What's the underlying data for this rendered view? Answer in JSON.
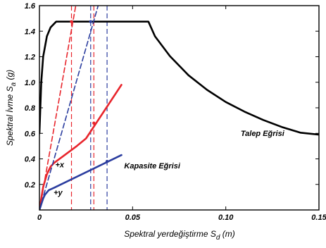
{
  "chart_data": {
    "type": "line",
    "xlabel_main": "Spektral yerdeğiştirme S",
    "xlabel_sub": "d",
    "xlabel_unit": " (m)",
    "ylabel_main": "Spektral İvme S",
    "ylabel_sub": "a",
    "ylabel_unit": " (g)",
    "xlim": [
      0,
      0.15
    ],
    "ylim": [
      0,
      1.6
    ],
    "x_ticks": [
      {
        "v": 0,
        "label": "0"
      },
      {
        "v": 0.05,
        "label": "0.05"
      },
      {
        "v": 0.1,
        "label": "0.10"
      },
      {
        "v": 0.15,
        "label": "0.15"
      }
    ],
    "y_ticks": [
      {
        "v": 0.2,
        "label": "0.2"
      },
      {
        "v": 0.4,
        "label": "0.4"
      },
      {
        "v": 0.6,
        "label": "0.6"
      },
      {
        "v": 0.8,
        "label": "0.8"
      },
      {
        "v": 1.0,
        "label": "1.0"
      },
      {
        "v": 1.2,
        "label": "1.2"
      },
      {
        "v": 1.4,
        "label": "1.4"
      },
      {
        "v": 1.6,
        "label": "1.6"
      }
    ],
    "grid": false,
    "series": [
      {
        "name": "Talep Eğrisi",
        "color": "#000000",
        "style": "solid",
        "points": [
          [
            0,
            0.6
          ],
          [
            0.001,
            1.0
          ],
          [
            0.002,
            1.2
          ],
          [
            0.004,
            1.36
          ],
          [
            0.006,
            1.43
          ],
          [
            0.009,
            1.475
          ],
          [
            0.0585,
            1.475
          ],
          [
            0.062,
            1.36
          ],
          [
            0.07,
            1.205
          ],
          [
            0.08,
            1.055
          ],
          [
            0.09,
            0.94
          ],
          [
            0.1,
            0.845
          ],
          [
            0.11,
            0.77
          ],
          [
            0.12,
            0.705
          ],
          [
            0.13,
            0.65
          ],
          [
            0.14,
            0.605
          ],
          [
            0.15,
            0.59
          ]
        ]
      },
      {
        "name": "Kapasite Eğrisi +x",
        "color": "#e8252c",
        "style": "solid",
        "points": [
          [
            0,
            0
          ],
          [
            0.002,
            0.18
          ],
          [
            0.004,
            0.28
          ],
          [
            0.006,
            0.34
          ],
          [
            0.008,
            0.37
          ],
          [
            0.02,
            0.5
          ],
          [
            0.025,
            0.56
          ],
          [
            0.044,
            0.98
          ]
        ]
      },
      {
        "name": "Kapasite Eğrisi +y",
        "color": "#2b3d9f",
        "style": "solid",
        "points": [
          [
            0,
            0
          ],
          [
            0.002,
            0.09
          ],
          [
            0.003,
            0.12
          ],
          [
            0.005,
            0.155
          ],
          [
            0.008,
            0.175
          ],
          [
            0.044,
            0.43
          ]
        ]
      },
      {
        "name": "",
        "color": "#e8252c",
        "style": "dashed",
        "points": [
          [
            0,
            0
          ],
          [
            0.0195,
            1.6
          ]
        ]
      },
      {
        "name": "",
        "color": "#2b3d9f",
        "style": "dashed",
        "points": [
          [
            0,
            0
          ],
          [
            0.0315,
            1.6
          ]
        ]
      }
    ],
    "vlines": [
      {
        "x": 0.0172,
        "color": "#e8252c"
      },
      {
        "x": 0.0292,
        "color": "#e8252c"
      },
      {
        "x": 0.0275,
        "color": "#2b3d9f"
      },
      {
        "x": 0.0363,
        "color": "#2b3d9f"
      }
    ],
    "performance_points": [
      {
        "x": 0.0172,
        "y": 1.475,
        "color": "#e8252c"
      },
      {
        "x": 0.0292,
        "y": 0.68,
        "color": "#e8252c"
      },
      {
        "x": 0.0275,
        "y": 1.475,
        "color": "#2b3d9f"
      },
      {
        "x": 0.0363,
        "y": 0.38,
        "color": "#2b3d9f"
      }
    ],
    "annotations": [
      {
        "text": "Talep Eğrisi",
        "x": 0.108,
        "y": 0.58
      },
      {
        "text": "Kapasite Eğrisi",
        "x": 0.0455,
        "y": 0.325
      },
      {
        "text": "+x",
        "x": 0.0085,
        "y": 0.335
      },
      {
        "text": "+y",
        "x": 0.0076,
        "y": 0.115
      }
    ]
  }
}
